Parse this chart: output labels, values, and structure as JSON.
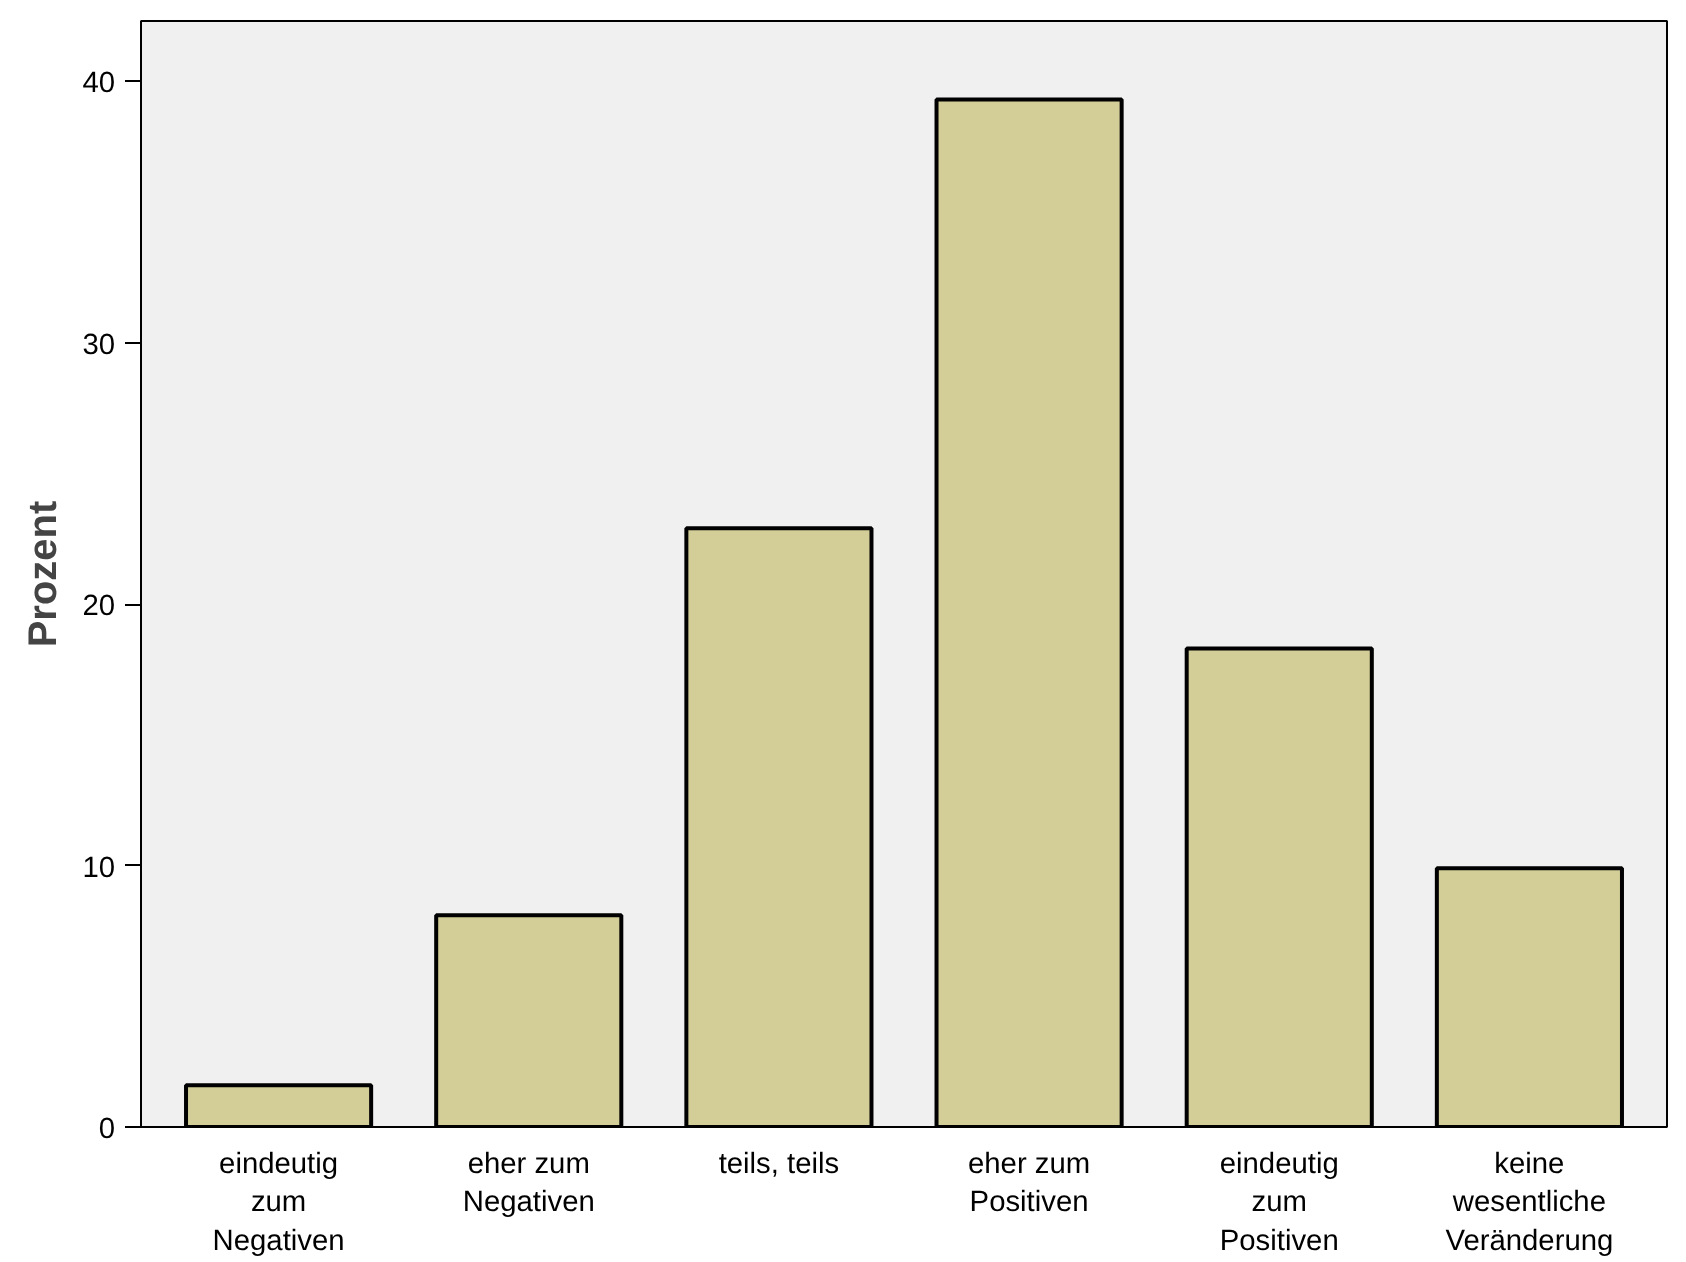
{
  "chart_data": {
    "type": "bar",
    "ylabel": "Prozent",
    "categories": [
      "eindeutig zum Negativen",
      "eher zum Negativen",
      "teils, teils",
      "eher zum Positiven",
      "eindeutig zum Positiven",
      "keine wesentliche Veränderung"
    ],
    "values": [
      1.6,
      8.1,
      22.9,
      39.3,
      18.3,
      9.9
    ],
    "color": "#d3ce97",
    "ylim": [
      0,
      42.3
    ],
    "yticks": [
      0,
      10,
      20,
      30,
      40
    ],
    "grid": false
  }
}
